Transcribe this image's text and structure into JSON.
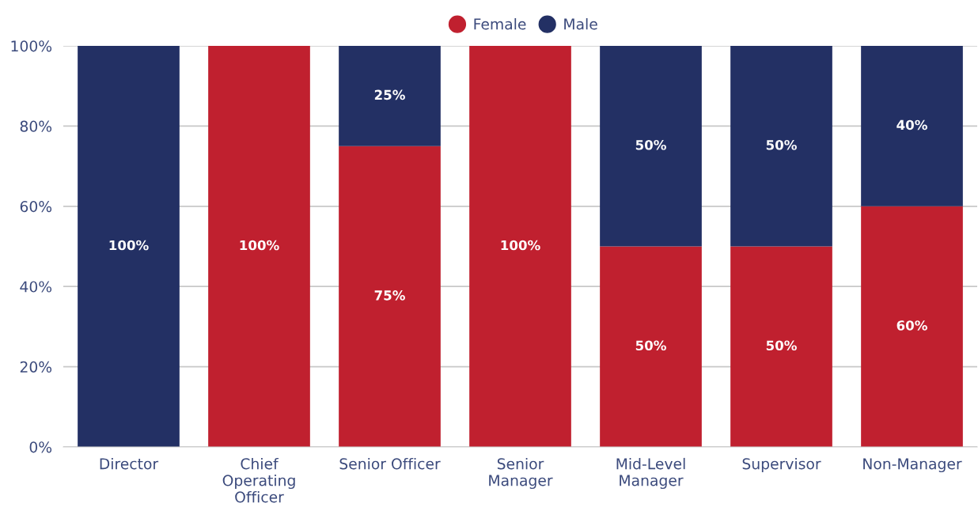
{
  "chart_data": {
    "type": "bar",
    "stacked": true,
    "categories": [
      "Director",
      "Chief\nOperating\nOfficer",
      "Senior Officer",
      "Senior\nManager",
      "Mid-Level\nManager",
      "Supervisor",
      "Non-Manager"
    ],
    "series": [
      {
        "name": "Female",
        "color": "#c0202f",
        "values": [
          0,
          100,
          75,
          100,
          50,
          50,
          60
        ],
        "value_labels": [
          null,
          "100%",
          "75%",
          "100%",
          "50%",
          "50%",
          "60%"
        ]
      },
      {
        "name": "Male",
        "color": "#233064",
        "values": [
          100,
          0,
          25,
          0,
          50,
          50,
          40
        ],
        "value_labels": [
          "100%",
          null,
          "25%",
          null,
          "50%",
          "50%",
          "40%"
        ]
      }
    ],
    "ylim": [
      0,
      100
    ],
    "yticks": [
      {
        "value": 0,
        "label": "0%"
      },
      {
        "value": 20,
        "label": "20%"
      },
      {
        "value": 40,
        "label": "40%"
      },
      {
        "value": 60,
        "label": "60%"
      },
      {
        "value": 80,
        "label": "80%"
      },
      {
        "value": 100,
        "label": "100%"
      }
    ],
    "grid": "y",
    "legend": "top"
  }
}
